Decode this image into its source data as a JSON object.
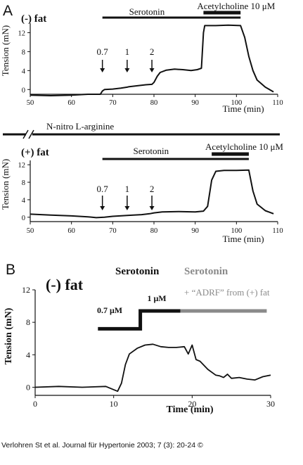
{
  "panel_A_label": "A",
  "panel_B_label": "B",
  "inhibitor_label": "N-nitro L-arginine",
  "citation": "Verlohren St et al. Journal für Hypertonie 2003; 7 (3): 20-24 ©",
  "chart_data": [
    {
      "type": "line",
      "panel": "A",
      "condition": "(-) fat",
      "xlabel": "Time (min)",
      "ylabel": "Tension (mN)",
      "xlim": [
        50,
        110
      ],
      "ylim": [
        -1,
        14
      ],
      "xticks": [
        50,
        60,
        70,
        80,
        90,
        100,
        110
      ],
      "yticks": [
        0,
        4,
        8,
        12
      ],
      "treatments": [
        {
          "label": "Serotonin",
          "start": 67.5,
          "end": 101
        },
        {
          "label": "Acetylcholine 10 μM",
          "start": 92,
          "end": 101
        }
      ],
      "dose_marks": [
        {
          "label": "0.7",
          "x": 67.5
        },
        {
          "label": "1",
          "x": 73.5
        },
        {
          "label": "2",
          "x": 79.5
        }
      ],
      "x": [
        50,
        55,
        60,
        64,
        67,
        67.5,
        68,
        70,
        72,
        73.5,
        74,
        76,
        78,
        79.5,
        80,
        80.8,
        81.5,
        83,
        85,
        87,
        89,
        90.5,
        91.5,
        92,
        92.3,
        95,
        98,
        101,
        102,
        103,
        104,
        105,
        107,
        109
      ],
      "values": [
        -1.2,
        -1.3,
        -1.2,
        -1.0,
        -1.0,
        -0.3,
        0.0,
        0.1,
        0.3,
        0.5,
        0.6,
        0.8,
        1.0,
        1.1,
        1.5,
        2.8,
        3.6,
        4.1,
        4.3,
        4.2,
        4.0,
        4.2,
        4.5,
        12.0,
        13.5,
        13.5,
        13.6,
        13.5,
        11.0,
        7.0,
        4.0,
        2.0,
        0.5,
        -0.5
      ]
    },
    {
      "type": "line",
      "panel": "A",
      "condition": "(+) fat",
      "xlabel": "Time (min)",
      "ylabel": "Tension (mN)",
      "xlim": [
        50,
        110
      ],
      "ylim": [
        -1,
        13
      ],
      "xticks": [
        50,
        60,
        70,
        80,
        90,
        100,
        110
      ],
      "yticks": [
        0,
        4,
        8,
        12
      ],
      "treatments": [
        {
          "label": "Serotonin",
          "start": 67.5,
          "end": 103
        },
        {
          "label": "Acetylcholine 10 μM",
          "start": 94,
          "end": 103
        }
      ],
      "dose_marks": [
        {
          "label": "0.7",
          "x": 67.5
        },
        {
          "label": "1",
          "x": 73.5
        },
        {
          "label": "2",
          "x": 79.5
        }
      ],
      "x": [
        50,
        55,
        60,
        64,
        66,
        68,
        70,
        73.5,
        75,
        77,
        79,
        80,
        82,
        86,
        90,
        92,
        93,
        94,
        95,
        97,
        100,
        103,
        104,
        105,
        107,
        109
      ],
      "values": [
        0.7,
        0.5,
        0.3,
        0.1,
        -0.1,
        0.0,
        0.2,
        0.4,
        0.5,
        0.6,
        0.8,
        1.0,
        1.2,
        1.3,
        1.2,
        1.4,
        2.5,
        8.5,
        10.5,
        10.7,
        10.7,
        10.8,
        6.0,
        3.0,
        1.5,
        0.8
      ]
    },
    {
      "type": "line",
      "panel": "B",
      "condition": "(-) fat",
      "xlabel": "Time (min)",
      "ylabel": "Tension (mN)",
      "xlim": [
        0,
        30
      ],
      "ylim": [
        -1,
        12
      ],
      "xticks": [
        0,
        10,
        20,
        30
      ],
      "yticks": [
        0,
        4,
        8,
        12
      ],
      "step_labels": [
        {
          "label": "Serotonin",
          "x": 13
        },
        {
          "label": "0.7 μM",
          "x": 9.5
        },
        {
          "label": "1 μM",
          "x": 15.5
        }
      ],
      "step_trace": [
        {
          "x": 8,
          "level": 7.2
        },
        {
          "x": 13.4,
          "level": 7.2
        },
        {
          "x": 13.4,
          "level": 9.4
        },
        {
          "x": 18.5,
          "level": 9.4
        }
      ],
      "adrf_annotation": {
        "title": "Serotonin",
        "line": "+ “ADRF” from (+) fat",
        "start": 18.5,
        "end": 29.5
      },
      "x": [
        0,
        3,
        6,
        9,
        10,
        10.5,
        11,
        11.5,
        12,
        13,
        14,
        15,
        16,
        17,
        18,
        19,
        19.5,
        20,
        20.5,
        21,
        22,
        23,
        23.5,
        24,
        24.5,
        25,
        26,
        27,
        28,
        29,
        30
      ],
      "values": [
        0.0,
        0.1,
        0.0,
        0.1,
        -0.3,
        -0.5,
        0.5,
        2.8,
        4.1,
        4.8,
        5.2,
        5.3,
        5.0,
        4.9,
        4.9,
        5.0,
        4.1,
        5.2,
        3.4,
        3.2,
        2.2,
        1.5,
        1.4,
        1.2,
        1.6,
        1.1,
        1.2,
        1.0,
        0.9,
        1.3,
        1.5
      ]
    }
  ]
}
